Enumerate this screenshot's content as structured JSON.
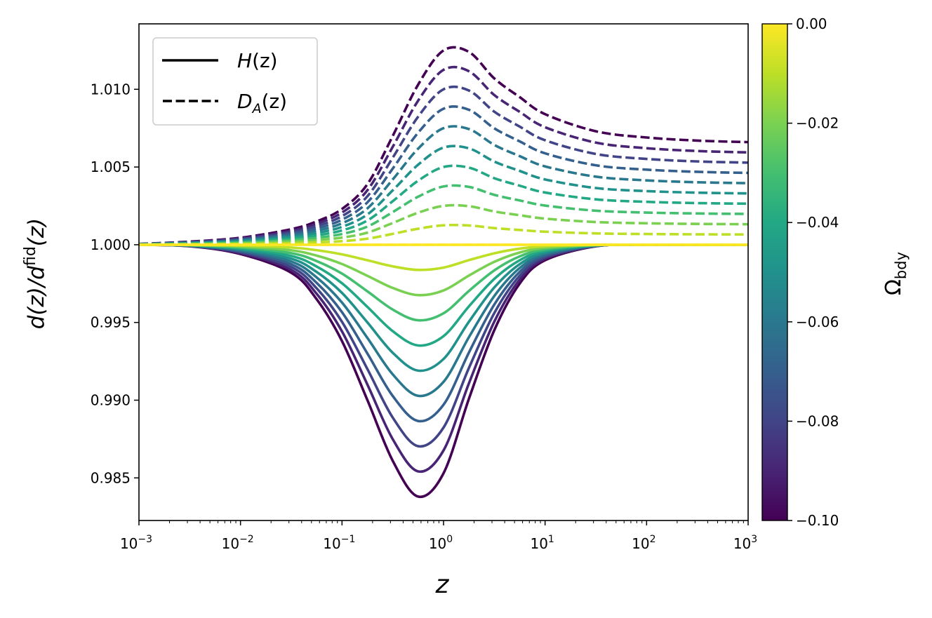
{
  "chart_data": {
    "type": "line",
    "xscale": "log",
    "xlim": [
      0.001,
      1000
    ],
    "ylim": [
      0.98226,
      1.01421
    ],
    "xlabel": "z",
    "ylabel": {
      "main": "d(z)/d",
      "sup": "fid",
      "tail": "(z)"
    },
    "x_ticks": [
      {
        "base": "10",
        "exp": "−3",
        "value": 0.001
      },
      {
        "base": "10",
        "exp": "−2",
        "value": 0.01
      },
      {
        "base": "10",
        "exp": "−1",
        "value": 0.1
      },
      {
        "base": "10",
        "exp": "0",
        "value": 1
      },
      {
        "base": "10",
        "exp": "1",
        "value": 10
      },
      {
        "base": "10",
        "exp": "2",
        "value": 100
      },
      {
        "base": "10",
        "exp": "3",
        "value": 1000
      }
    ],
    "y_ticks": [
      {
        "label": "1.010",
        "value": 1.01
      },
      {
        "label": "1.005",
        "value": 1.005
      },
      {
        "label": "1.000",
        "value": 1.0
      },
      {
        "label": "0.995",
        "value": 0.995
      },
      {
        "label": "0.990",
        "value": 0.99
      },
      {
        "label": "0.985",
        "value": 0.985
      }
    ],
    "grid": false,
    "legend": {
      "position": "top-left",
      "entries": [
        {
          "main": "H",
          "sub": "",
          "tail": "(z)",
          "style": "solid"
        },
        {
          "main": "D",
          "sub": "A",
          "tail": "(z)",
          "style": "dashed"
        }
      ]
    },
    "colorbar": {
      "colormap": "viridis",
      "label_main": "Ω",
      "label_sub": "bdy",
      "range": [
        -0.1,
        0.0
      ],
      "ticks": [
        {
          "label": "0.00",
          "value": 0.0
        },
        {
          "label": "−0.02",
          "value": -0.02
        },
        {
          "label": "−0.04",
          "value": -0.04
        },
        {
          "label": "−0.06",
          "value": -0.06
        },
        {
          "label": "−0.08",
          "value": -0.08
        },
        {
          "label": "−0.10",
          "value": -0.1
        }
      ]
    },
    "x": [
      0.001,
      0.00316,
      0.01,
      0.0316,
      0.0562,
      0.1,
      0.178,
      0.316,
      0.562,
      1,
      1.78,
      3.16,
      5.62,
      10,
      31.6,
      100,
      316,
      1000
    ],
    "series": [
      {
        "omega": -0.1,
        "color": "#440154",
        "H": [
          1,
          0.9999,
          0.9994,
          0.9982,
          0.9965,
          0.9938,
          0.99,
          0.9861,
          0.9838,
          0.9853,
          0.9901,
          0.9945,
          0.9975,
          0.999,
          0.9999,
          1,
          1,
          1
        ],
        "DA": [
          1.00005,
          1.0002,
          1.00045,
          1.001,
          1.0015,
          1.0023,
          1.0039,
          1.007,
          1.0103,
          1.0125,
          1.0124,
          1.0107,
          1.0095,
          1.0084,
          1.0073,
          1.0069,
          1.0067,
          1.0066
        ]
      },
      {
        "omega": -0.09,
        "color": "#482475",
        "H": [
          1,
          0.99991,
          0.99946,
          0.99838,
          0.99685,
          0.99442,
          0.991,
          0.98749,
          0.98542,
          0.98677,
          0.99109,
          0.99505,
          0.99775,
          0.9991,
          0.99991,
          1,
          1,
          1
        ],
        "DA": [
          1.00005,
          1.00018,
          1.00041,
          1.0009,
          1.00135,
          1.00207,
          1.00351,
          1.0063,
          1.00927,
          1.01125,
          1.01116,
          1.00963,
          1.00855,
          1.00756,
          1.00657,
          1.00621,
          1.00603,
          1.00594
        ]
      },
      {
        "omega": -0.08,
        "color": "#414487",
        "H": [
          1,
          0.99992,
          0.99952,
          0.99856,
          0.9972,
          0.99504,
          0.992,
          0.98888,
          0.98704,
          0.98824,
          0.99208,
          0.9956,
          0.998,
          0.9992,
          0.99992,
          1,
          1,
          1
        ],
        "DA": [
          1.00004,
          1.00016,
          1.00036,
          1.0008,
          1.0012,
          1.00184,
          1.00312,
          1.0056,
          1.00824,
          1.01,
          1.00992,
          1.00856,
          1.0076,
          1.00672,
          1.00584,
          1.00552,
          1.00536,
          1.00528
        ]
      },
      {
        "omega": -0.07,
        "color": "#355f8d",
        "H": [
          1,
          0.99993,
          0.99958,
          0.99874,
          0.99755,
          0.99566,
          0.993,
          0.99027,
          0.98866,
          0.98971,
          0.99307,
          0.99615,
          0.99825,
          0.9993,
          0.99993,
          1,
          1,
          1
        ],
        "DA": [
          1.00004,
          1.00014,
          1.00032,
          1.0007,
          1.00105,
          1.00161,
          1.00273,
          1.0049,
          1.00721,
          1.00875,
          1.00868,
          1.00749,
          1.00665,
          1.00588,
          1.00511,
          1.00483,
          1.00469,
          1.00462
        ]
      },
      {
        "omega": -0.06,
        "color": "#2a788e",
        "H": [
          1,
          0.99994,
          0.99964,
          0.99892,
          0.9979,
          0.99628,
          0.994,
          0.99166,
          0.99028,
          0.99118,
          0.99406,
          0.9967,
          0.9985,
          0.9994,
          0.99994,
          1,
          1,
          1
        ],
        "DA": [
          1.00003,
          1.00012,
          1.00027,
          1.0006,
          1.0009,
          1.00138,
          1.00234,
          1.0042,
          1.00618,
          1.0075,
          1.00744,
          1.00642,
          1.0057,
          1.00504,
          1.00438,
          1.00414,
          1.00402,
          1.00396
        ]
      },
      {
        "omega": -0.05,
        "color": "#21918c",
        "H": [
          1,
          0.99995,
          0.9997,
          0.9991,
          0.99825,
          0.9969,
          0.995,
          0.99305,
          0.9919,
          0.99265,
          0.99505,
          0.99725,
          0.99875,
          0.9995,
          0.99995,
          1,
          1,
          1
        ],
        "DA": [
          1.00003,
          1.0001,
          1.00023,
          1.0005,
          1.00075,
          1.00115,
          1.00195,
          1.0035,
          1.00515,
          1.00625,
          1.0062,
          1.00535,
          1.00475,
          1.0042,
          1.00365,
          1.00345,
          1.00335,
          1.0033
        ]
      },
      {
        "omega": -0.04,
        "color": "#22a884",
        "H": [
          1,
          0.99996,
          0.99976,
          0.99928,
          0.9986,
          0.99752,
          0.996,
          0.99444,
          0.99352,
          0.99412,
          0.99604,
          0.9978,
          0.999,
          0.9996,
          0.99996,
          1,
          1,
          1
        ],
        "DA": [
          1.00002,
          1.00008,
          1.00018,
          1.0004,
          1.0006,
          1.00092,
          1.00156,
          1.0028,
          1.00412,
          1.005,
          1.00496,
          1.00428,
          1.0038,
          1.00336,
          1.00292,
          1.00276,
          1.00268,
          1.00264
        ]
      },
      {
        "omega": -0.03,
        "color": "#44bf70",
        "H": [
          1,
          0.99997,
          0.99982,
          0.99946,
          0.99895,
          0.99814,
          0.997,
          0.99583,
          0.99514,
          0.99559,
          0.99703,
          0.99835,
          0.99925,
          0.9997,
          0.99997,
          1,
          1,
          1
        ],
        "DA": [
          1.00002,
          1.00006,
          1.00014,
          1.0003,
          1.00045,
          1.00069,
          1.00117,
          1.0021,
          1.00309,
          1.00375,
          1.00372,
          1.00321,
          1.00285,
          1.00252,
          1.00219,
          1.00207,
          1.00201,
          1.00198
        ]
      },
      {
        "omega": -0.02,
        "color": "#7ad151",
        "H": [
          1,
          0.99998,
          0.99988,
          0.99964,
          0.9993,
          0.99876,
          0.998,
          0.99722,
          0.99676,
          0.99706,
          0.99802,
          0.9989,
          0.9995,
          0.9998,
          0.99998,
          1,
          1,
          1
        ],
        "DA": [
          1.00001,
          1.00004,
          1.00009,
          1.0002,
          1.0003,
          1.00046,
          1.00078,
          1.0014,
          1.00206,
          1.0025,
          1.00248,
          1.00214,
          1.0019,
          1.00168,
          1.00146,
          1.00138,
          1.00134,
          1.00132
        ]
      },
      {
        "omega": -0.01,
        "color": "#bddf26",
        "H": [
          1,
          0.99999,
          0.99994,
          0.99982,
          0.99965,
          0.99938,
          0.999,
          0.99861,
          0.99838,
          0.99853,
          0.99901,
          0.99945,
          0.99975,
          0.9999,
          0.99999,
          1,
          1,
          1
        ],
        "DA": [
          1,
          1.00002,
          1.00005,
          1.0001,
          1.00015,
          1.00023,
          1.00039,
          1.0007,
          1.00103,
          1.00125,
          1.00124,
          1.00107,
          1.00095,
          1.00084,
          1.00073,
          1.00069,
          1.00067,
          1.00066
        ]
      },
      {
        "omega": 0.0,
        "color": "#fde725",
        "H": [
          1,
          1,
          1,
          1,
          1,
          1,
          1,
          1,
          1,
          1,
          1,
          1,
          1,
          1,
          1,
          1,
          1,
          1
        ],
        "DA": [
          1,
          1,
          1,
          1,
          1,
          1,
          1,
          1,
          1,
          1,
          1,
          1,
          1,
          1,
          1,
          1,
          1,
          1
        ]
      }
    ]
  }
}
